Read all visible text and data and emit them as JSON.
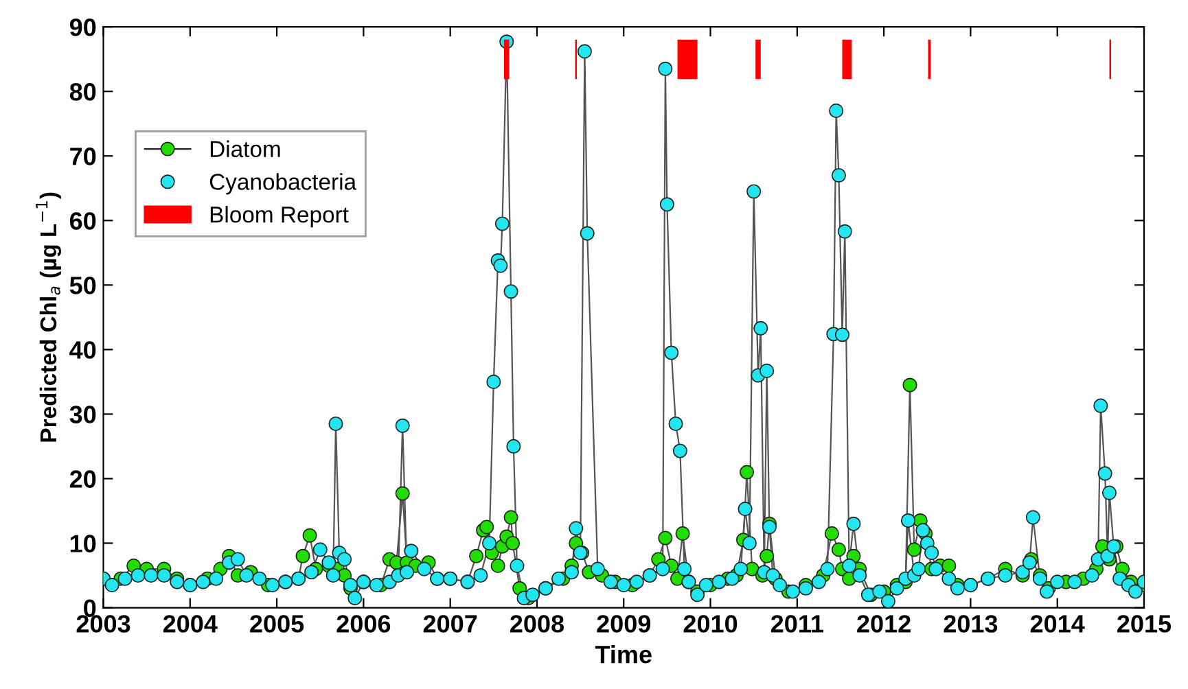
{
  "chart_data": {
    "type": "line",
    "xlabel": "Time",
    "ylabel": "Predicted Chl$_{a}$ (µg L$^{−1}$)",
    "xlim": [
      2003,
      2015
    ],
    "xticks": [
      2003,
      2004,
      2005,
      2006,
      2007,
      2008,
      2009,
      2010,
      2011,
      2012,
      2013,
      2014,
      2015
    ],
    "ylim": [
      0,
      90
    ],
    "yticks": [
      0,
      10,
      20,
      30,
      40,
      50,
      60,
      70,
      80,
      90
    ],
    "grid": false,
    "legend": "top left",
    "marker": "circle",
    "series": [
      {
        "name": "Diatom",
        "color": "#22dd00",
        "line_style": "solid",
        "x": [
          2003.0,
          2003.2,
          2003.35,
          2003.5,
          2003.7,
          2003.85,
          2004.0,
          2004.2,
          2004.35,
          2004.45,
          2004.55,
          2004.7,
          2004.9,
          2005.1,
          2005.25,
          2005.3,
          2005.38,
          2005.45,
          2005.6,
          2005.7,
          2005.78,
          2005.85,
          2006.0,
          2006.2,
          2006.3,
          2006.38,
          2006.45,
          2006.5,
          2006.6,
          2006.75,
          2006.85,
          2007.0,
          2007.2,
          2007.3,
          2007.38,
          2007.42,
          2007.48,
          2007.55,
          2007.6,
          2007.65,
          2007.7,
          2007.72,
          2007.8,
          2007.9,
          2008.1,
          2008.3,
          2008.4,
          2008.45,
          2008.52,
          2008.6,
          2008.75,
          2008.9,
          2009.1,
          2009.3,
          2009.4,
          2009.48,
          2009.55,
          2009.62,
          2009.68,
          2009.75,
          2009.85,
          2010.0,
          2010.2,
          2010.3,
          2010.38,
          2010.42,
          2010.48,
          2010.6,
          2010.65,
          2010.68,
          2010.75,
          2010.9,
          2011.1,
          2011.3,
          2011.4,
          2011.48,
          2011.52,
          2011.6,
          2011.65,
          2011.72,
          2011.85,
          2012.0,
          2012.15,
          2012.25,
          2012.3,
          2012.35,
          2012.42,
          2012.48,
          2012.55,
          2012.65,
          2012.75,
          2012.85,
          2013.0,
          2013.2,
          2013.4,
          2013.6,
          2013.7,
          2013.8,
          2013.9,
          2014.1,
          2014.3,
          2014.45,
          2014.52,
          2014.6,
          2014.68,
          2014.75,
          2014.85,
          2015.0
        ],
        "values": [
          4.5,
          4.5,
          6.5,
          6,
          6,
          4.5,
          3.5,
          4.5,
          6,
          8,
          5,
          5.5,
          3.5,
          4,
          4.5,
          8,
          11.2,
          6,
          6.5,
          6,
          5,
          3,
          4,
          3.5,
          7.5,
          7,
          17.7,
          7,
          6.5,
          7,
          4.5,
          4.5,
          4,
          8,
          12,
          12.5,
          8.5,
          6.5,
          9.5,
          11,
          14,
          10,
          3,
          1.5,
          3,
          4.5,
          6.5,
          10,
          8.5,
          5.5,
          5,
          4,
          3.5,
          5,
          7.5,
          10.8,
          6.5,
          4.5,
          11.5,
          4,
          2.5,
          3.5,
          4.5,
          5,
          10.5,
          21,
          6,
          5,
          8,
          13,
          4.5,
          2.5,
          3.5,
          5,
          11.5,
          9,
          6,
          4.5,
          8,
          6,
          2,
          2.5,
          3.5,
          4,
          34.5,
          9,
          13.5,
          11.5,
          6,
          6.5,
          6.5,
          3.5,
          3.5,
          4.5,
          6,
          5,
          7.5,
          5,
          3,
          4,
          4.5,
          6,
          9.5,
          7.5,
          9.5,
          6,
          4,
          3.5
        ]
      },
      {
        "name": "Cyanobacteria",
        "color": "#22e5f0",
        "line_style": "solid",
        "x": [
          2003.0,
          2003.1,
          2003.25,
          2003.4,
          2003.55,
          2003.7,
          2003.85,
          2004.0,
          2004.15,
          2004.3,
          2004.45,
          2004.55,
          2004.65,
          2004.8,
          2004.95,
          2005.1,
          2005.25,
          2005.4,
          2005.5,
          2005.6,
          2005.65,
          2005.68,
          2005.72,
          2005.78,
          2005.85,
          2005.9,
          2006.0,
          2006.15,
          2006.3,
          2006.4,
          2006.45,
          2006.5,
          2006.55,
          2006.7,
          2006.85,
          2007.0,
          2007.2,
          2007.35,
          2007.45,
          2007.5,
          2007.55,
          2007.58,
          2007.6,
          2007.65,
          2007.7,
          2007.73,
          2007.77,
          2007.85,
          2007.95,
          2008.1,
          2008.25,
          2008.4,
          2008.45,
          2008.5,
          2008.55,
          2008.58,
          2008.7,
          2008.85,
          2009.0,
          2009.15,
          2009.3,
          2009.45,
          2009.48,
          2009.5,
          2009.55,
          2009.6,
          2009.65,
          2009.7,
          2009.75,
          2009.85,
          2009.95,
          2010.1,
          2010.25,
          2010.35,
          2010.4,
          2010.45,
          2010.5,
          2010.55,
          2010.58,
          2010.62,
          2010.65,
          2010.68,
          2010.72,
          2010.8,
          2010.95,
          2011.1,
          2011.25,
          2011.35,
          2011.42,
          2011.45,
          2011.48,
          2011.52,
          2011.55,
          2011.6,
          2011.65,
          2011.72,
          2011.82,
          2011.95,
          2012.05,
          2012.15,
          2012.25,
          2012.28,
          2012.35,
          2012.4,
          2012.45,
          2012.5,
          2012.55,
          2012.6,
          2012.75,
          2012.85,
          2013.0,
          2013.2,
          2013.4,
          2013.6,
          2013.68,
          2013.72,
          2013.8,
          2013.88,
          2014.0,
          2014.2,
          2014.4,
          2014.47,
          2014.5,
          2014.55,
          2014.58,
          2014.6,
          2014.65,
          2014.72,
          2014.82,
          2014.9,
          2015.0
        ],
        "values": [
          4.5,
          3.5,
          4.5,
          5,
          5,
          5,
          4,
          3.5,
          4,
          4.5,
          7,
          7.5,
          5,
          4.5,
          3.5,
          4,
          4.5,
          5.5,
          9,
          7,
          5,
          28.5,
          8.5,
          7.5,
          3.5,
          1.5,
          4,
          3.5,
          4,
          5,
          28.2,
          5.5,
          8.8,
          6,
          4.5,
          4.5,
          4,
          5,
          10,
          35,
          53.8,
          53,
          59.5,
          87.7,
          49,
          25,
          6.5,
          1.5,
          2,
          3,
          4.5,
          5.5,
          12.3,
          8.5,
          86.2,
          58,
          6,
          4,
          3.5,
          4,
          5,
          6,
          83.5,
          62.5,
          39.5,
          28.5,
          24.3,
          6,
          4,
          2,
          3.5,
          4,
          4.5,
          6,
          15.3,
          10,
          64.5,
          36,
          43.3,
          5.5,
          36.7,
          12.5,
          5,
          3.5,
          2.5,
          3,
          4,
          6,
          42.4,
          77,
          67,
          42.3,
          58.3,
          6.5,
          13,
          5,
          2,
          2.5,
          1,
          3,
          4.5,
          13.5,
          5,
          6,
          12,
          10,
          8.5,
          6,
          4.5,
          3,
          3.5,
          4.5,
          5,
          5.5,
          7,
          14,
          4.5,
          2.5,
          4,
          4,
          5,
          7.5,
          31.3,
          20.8,
          8,
          17.8,
          9.5,
          4.5,
          3.5,
          2.5,
          4
        ]
      }
    ],
    "bands": [
      {
        "axis": "x",
        "from": 2007.62,
        "to": 2007.68,
        "label": "Bloom Report",
        "color": "#ff0000"
      },
      {
        "axis": "x",
        "from": 2008.44,
        "to": 2008.46,
        "color": "#ff0000"
      },
      {
        "axis": "x",
        "from": 2009.62,
        "to": 2009.85,
        "color": "#ff0000"
      },
      {
        "axis": "x",
        "from": 2010.52,
        "to": 2010.58,
        "color": "#ff0000"
      },
      {
        "axis": "x",
        "from": 2011.52,
        "to": 2011.63,
        "color": "#ff0000"
      },
      {
        "axis": "x",
        "from": 2012.51,
        "to": 2012.54,
        "color": "#ff0000"
      },
      {
        "axis": "x",
        "from": 2014.6,
        "to": 2014.62,
        "color": "#ff0000"
      }
    ]
  }
}
